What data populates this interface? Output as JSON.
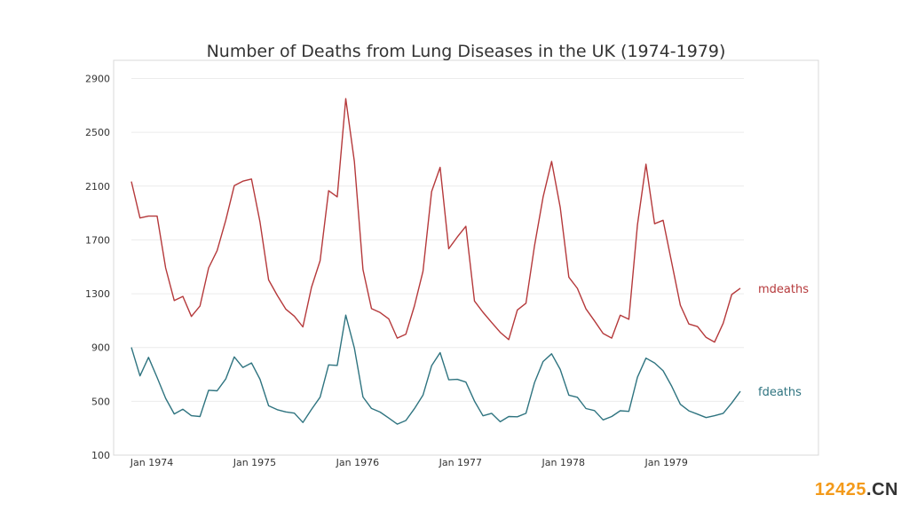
{
  "chart_data": {
    "type": "line",
    "title": "Number of Deaths from Lung Diseases in the UK (1974-1979)",
    "xlabel": "",
    "ylabel": "",
    "x_ticks": [
      "Jan 1974",
      "Jan 1975",
      "Jan 1976",
      "Jan 1977",
      "Jan 1978",
      "Jan 1979"
    ],
    "y_ticks": [
      100,
      500,
      900,
      1300,
      1700,
      2100,
      2500,
      2900
    ],
    "ylim": [
      100,
      3000
    ],
    "x_start": "1974-01",
    "x_end": "1979-12",
    "grid": "horizontal",
    "legend": "inline labels at right end of each line",
    "series": [
      {
        "name": "mdeaths",
        "color": "#b5393b",
        "values": [
          2134,
          1863,
          1877,
          1877,
          1492,
          1249,
          1280,
          1131,
          1209,
          1492,
          1621,
          1846,
          2103,
          2137,
          2153,
          1833,
          1403,
          1288,
          1186,
          1133,
          1053,
          1347,
          1545,
          2066,
          2020,
          2750,
          2283,
          1479,
          1189,
          1160,
          1113,
          970,
          999,
          1208,
          1467,
          2059,
          2240,
          1634,
          1722,
          1801,
          1246,
          1162,
          1087,
          1013,
          959,
          1179,
          1229,
          1655,
          2019,
          2284,
          1942,
          1423,
          1340,
          1187,
          1098,
          1004,
          970,
          1140,
          1110,
          1812,
          2263,
          1820,
          1846,
          1531,
          1215,
          1075,
          1056,
          975,
          940,
          1081,
          1294,
          1341
        ]
      },
      {
        "name": "fdeaths",
        "color": "#2f7480",
        "values": [
          901,
          689,
          827,
          677,
          522,
          406,
          441,
          393,
          387,
          582,
          578,
          666,
          830,
          752,
          785,
          664,
          467,
          438,
          421,
          412,
          343,
          440,
          531,
          771,
          767,
          1141,
          896,
          532,
          447,
          420,
          376,
          330,
          357,
          445,
          546,
          764,
          862,
          660,
          663,
          643,
          502,
          392,
          411,
          348,
          387,
          385,
          411,
          638,
          796,
          853,
          737,
          546,
          530,
          446,
          431,
          362,
          387,
          430,
          425,
          679,
          821,
          785,
          727,
          612,
          478,
          429,
          405,
          379,
          393,
          411,
          487,
          574
        ]
      }
    ]
  },
  "watermark": {
    "number": "12425",
    "dot": ".",
    "domain": "CN"
  }
}
